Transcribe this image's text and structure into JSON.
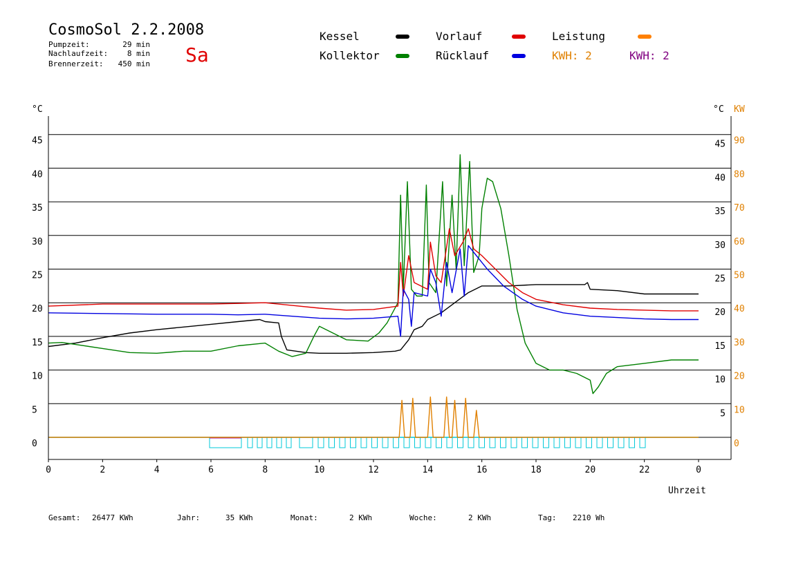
{
  "header": {
    "title": "CosmoSol 2.2.2008",
    "day": "Sa",
    "stats": [
      {
        "label": "Pumpzeit:",
        "value": "29 min"
      },
      {
        "label": "Nachlaufzeit:",
        "value": "8 min"
      },
      {
        "label": "Brennerzeit:",
        "value": "450 min"
      }
    ]
  },
  "legend": {
    "items": [
      {
        "label": "Kessel",
        "color": "#000000"
      },
      {
        "label": "Vorlauf",
        "color": "#e00000"
      },
      {
        "label": "Leistung",
        "color": "#ff8000"
      },
      {
        "label": "Kollektor",
        "color": "#008000"
      },
      {
        "label": "Rücklauf",
        "color": "#0000e0"
      }
    ],
    "kwh_orange": "KWH: 2",
    "kwh_purple": "KWH: 2",
    "kwh_orange_color": "#e08000",
    "kwh_purple_color": "#800080"
  },
  "footer": [
    {
      "label": "Gesamt:",
      "value": "26477 KWh"
    },
    {
      "label": "Jahr:",
      "value": "35 KWh"
    },
    {
      "label": "Monat:",
      "value": "2 KWh"
    },
    {
      "label": "Woche:",
      "value": "2 KWh"
    },
    {
      "label": "Tag:",
      "value": "2210 Wh"
    }
  ],
  "chart_data": {
    "type": "line",
    "xlabel": "Uhrzeit",
    "ylabel_left": "°C",
    "ylabel_right": [
      "°C",
      "KW"
    ],
    "xlim": [
      0,
      24
    ],
    "ylim": [
      -3,
      48
    ],
    "grid": "horizontal",
    "x_ticks": [
      "0",
      "2",
      "4",
      "6",
      "8",
      "10",
      "12",
      "14",
      "16",
      "18",
      "20",
      "22",
      "0"
    ],
    "y_ticks_left": [
      "0",
      "5",
      "10",
      "15",
      "20",
      "25",
      "30",
      "35",
      "40",
      "45"
    ],
    "y_ticks_right_c": [
      "5",
      "10",
      "15",
      "20",
      "25",
      "30",
      "35",
      "40",
      "45"
    ],
    "y_ticks_right_kw": [
      "0",
      "10",
      "20",
      "30",
      "40",
      "50",
      "60",
      "70",
      "80",
      "90"
    ],
    "series": [
      {
        "name": "Kessel",
        "color": "#000000",
        "points": [
          [
            0,
            13.5
          ],
          [
            1,
            14
          ],
          [
            2,
            14.8
          ],
          [
            3,
            15.5
          ],
          [
            4,
            16
          ],
          [
            5,
            16.4
          ],
          [
            6,
            16.8
          ],
          [
            7,
            17.2
          ],
          [
            7.8,
            17.5
          ],
          [
            8,
            17.2
          ],
          [
            8.5,
            17
          ],
          [
            8.6,
            15
          ],
          [
            8.8,
            13
          ],
          [
            9.5,
            12.6
          ],
          [
            10,
            12.5
          ],
          [
            11,
            12.5
          ],
          [
            12,
            12.6
          ],
          [
            12.8,
            12.8
          ],
          [
            13,
            13
          ],
          [
            13.3,
            14.5
          ],
          [
            13.5,
            16
          ],
          [
            13.8,
            16.5
          ],
          [
            14,
            17.5
          ],
          [
            14.5,
            18.5
          ],
          [
            15,
            20
          ],
          [
            15.5,
            21.5
          ],
          [
            16,
            22.5
          ],
          [
            16.5,
            22.5
          ],
          [
            17,
            22.5
          ],
          [
            18,
            22.7
          ],
          [
            19,
            22.7
          ],
          [
            19.8,
            22.7
          ],
          [
            19.9,
            23
          ],
          [
            20,
            22
          ],
          [
            21,
            21.8
          ],
          [
            22,
            21.3
          ],
          [
            23,
            21.3
          ],
          [
            24,
            21.3
          ]
        ]
      },
      {
        "name": "Kollektor",
        "color": "#008000",
        "points": [
          [
            0,
            14
          ],
          [
            0.5,
            14.1
          ],
          [
            1,
            13.8
          ],
          [
            2,
            13.2
          ],
          [
            3,
            12.6
          ],
          [
            4,
            12.5
          ],
          [
            5,
            12.8
          ],
          [
            6,
            12.8
          ],
          [
            7,
            13.6
          ],
          [
            8,
            14
          ],
          [
            8.5,
            12.8
          ],
          [
            9,
            12
          ],
          [
            9.5,
            12.5
          ],
          [
            9.8,
            15
          ],
          [
            10,
            16.5
          ],
          [
            10.5,
            15.5
          ],
          [
            11,
            14.5
          ],
          [
            11.8,
            14.3
          ],
          [
            12.2,
            15.5
          ],
          [
            12.5,
            17
          ],
          [
            12.9,
            20
          ],
          [
            13,
            36
          ],
          [
            13.1,
            22
          ],
          [
            13.25,
            38
          ],
          [
            13.4,
            22
          ],
          [
            13.6,
            21
          ],
          [
            13.8,
            21
          ],
          [
            13.95,
            37.5
          ],
          [
            14.05,
            23
          ],
          [
            14.3,
            21.5
          ],
          [
            14.55,
            38
          ],
          [
            14.7,
            22.5
          ],
          [
            14.9,
            36
          ],
          [
            15.05,
            25
          ],
          [
            15.2,
            42
          ],
          [
            15.35,
            25.5
          ],
          [
            15.55,
            41
          ],
          [
            15.7,
            24.5
          ],
          [
            15.9,
            27
          ],
          [
            16,
            34
          ],
          [
            16.2,
            38.5
          ],
          [
            16.4,
            38
          ],
          [
            16.7,
            34
          ],
          [
            17,
            27
          ],
          [
            17.3,
            19
          ],
          [
            17.6,
            14
          ],
          [
            18,
            11
          ],
          [
            18.5,
            10
          ],
          [
            19,
            10
          ],
          [
            19.5,
            9.5
          ],
          [
            20,
            8.5
          ],
          [
            20.1,
            6.5
          ],
          [
            20.3,
            7.5
          ],
          [
            20.6,
            9.5
          ],
          [
            21,
            10.5
          ],
          [
            22,
            11
          ],
          [
            23,
            11.5
          ],
          [
            24,
            11.5
          ]
        ]
      },
      {
        "name": "Vorlauf",
        "color": "#e00000",
        "points": [
          [
            0,
            19.5
          ],
          [
            2,
            19.8
          ],
          [
            4,
            19.8
          ],
          [
            6,
            19.8
          ],
          [
            7,
            19.9
          ],
          [
            8,
            20
          ],
          [
            9,
            19.6
          ],
          [
            10,
            19.2
          ],
          [
            11,
            18.9
          ],
          [
            12,
            19
          ],
          [
            12.9,
            19.5
          ],
          [
            13.0,
            26
          ],
          [
            13.1,
            21
          ],
          [
            13.3,
            27
          ],
          [
            13.5,
            23
          ],
          [
            14,
            22
          ],
          [
            14.1,
            29
          ],
          [
            14.3,
            24
          ],
          [
            14.5,
            23
          ],
          [
            14.8,
            31
          ],
          [
            15,
            27
          ],
          [
            15.3,
            29
          ],
          [
            15.5,
            31
          ],
          [
            15.7,
            28
          ],
          [
            16,
            27
          ],
          [
            16.5,
            25
          ],
          [
            17,
            23
          ],
          [
            17.5,
            21.5
          ],
          [
            18,
            20.5
          ],
          [
            19,
            19.7
          ],
          [
            20,
            19.2
          ],
          [
            21,
            19
          ],
          [
            22,
            18.9
          ],
          [
            23,
            18.8
          ],
          [
            24,
            18.8
          ]
        ]
      },
      {
        "name": "Rücklauf",
        "color": "#0000e0",
        "points": [
          [
            0,
            18.5
          ],
          [
            2,
            18.4
          ],
          [
            4,
            18.3
          ],
          [
            6,
            18.3
          ],
          [
            7,
            18.2
          ],
          [
            8,
            18.3
          ],
          [
            9,
            18
          ],
          [
            10,
            17.7
          ],
          [
            11,
            17.6
          ],
          [
            12,
            17.7
          ],
          [
            12.9,
            18
          ],
          [
            13.0,
            15
          ],
          [
            13.1,
            22
          ],
          [
            13.3,
            20.5
          ],
          [
            13.4,
            16.5
          ],
          [
            13.5,
            21.5
          ],
          [
            14,
            21
          ],
          [
            14.1,
            25
          ],
          [
            14.3,
            23
          ],
          [
            14.5,
            18
          ],
          [
            14.7,
            26
          ],
          [
            14.9,
            21.5
          ],
          [
            15.2,
            28
          ],
          [
            15.35,
            21
          ],
          [
            15.5,
            28.5
          ],
          [
            15.8,
            27
          ],
          [
            16.2,
            25
          ],
          [
            16.8,
            22.5
          ],
          [
            17.5,
            20.5
          ],
          [
            18,
            19.5
          ],
          [
            19,
            18.5
          ],
          [
            20,
            18
          ],
          [
            21,
            17.8
          ],
          [
            22,
            17.6
          ],
          [
            23,
            17.5
          ],
          [
            24,
            17.5
          ]
        ]
      },
      {
        "name": "Leistung",
        "color": "#e08000",
        "points": [
          [
            0,
            0
          ],
          [
            12.95,
            0
          ],
          [
            13.05,
            5.5
          ],
          [
            13.15,
            0
          ],
          [
            13.35,
            0
          ],
          [
            13.45,
            5.8
          ],
          [
            13.55,
            0
          ],
          [
            14.0,
            0
          ],
          [
            14.1,
            6
          ],
          [
            14.2,
            0
          ],
          [
            14.6,
            0
          ],
          [
            14.7,
            6
          ],
          [
            14.8,
            0
          ],
          [
            14.9,
            0
          ],
          [
            15.0,
            5.5
          ],
          [
            15.1,
            0
          ],
          [
            15.3,
            0
          ],
          [
            15.4,
            5.8
          ],
          [
            15.5,
            0
          ],
          [
            15.7,
            0
          ],
          [
            15.8,
            4
          ],
          [
            15.9,
            0
          ],
          [
            24,
            0
          ]
        ]
      }
    ]
  }
}
